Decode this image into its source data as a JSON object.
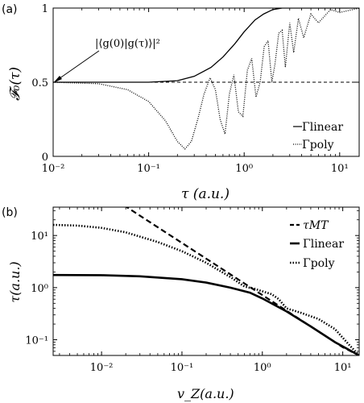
{
  "chart_data": [
    {
      "panel_label": "(a)",
      "type": "line",
      "xlabel": "τ (a.u.)",
      "ylabel": "𝓕₀(τ)",
      "xscale": "log",
      "xlim": [
        0.01,
        16
      ],
      "ylim": [
        0,
        1
      ],
      "x_ticks": [
        0.01,
        0.1,
        1,
        10
      ],
      "x_tick_labels": [
        "10⁻²",
        "10⁻¹",
        "10⁰",
        "10¹"
      ],
      "y_ticks": [
        0,
        0.5,
        1
      ],
      "y_tick_labels": [
        "0",
        "0.5",
        "1"
      ],
      "annotation": "|⟨g(0)|g(τ)⟩|²",
      "grid": false,
      "legend_position": "right",
      "series": [
        {
          "name": "Γ_linear",
          "legend_text": "Γlinear",
          "style": "solid",
          "x": [
            0.01,
            0.1,
            0.2,
            0.3,
            0.45,
            0.6,
            0.8,
            1.0,
            1.3,
            1.6,
            2.0,
            2.5,
            3.0,
            16
          ],
          "y": [
            0.5,
            0.5,
            0.51,
            0.54,
            0.6,
            0.67,
            0.76,
            0.84,
            0.92,
            0.96,
            0.99,
            1.0,
            1.0,
            1.0
          ]
        },
        {
          "name": "Γ_poly",
          "legend_text": "Γpoly",
          "style": "dotted",
          "x": [
            0.01,
            0.03,
            0.06,
            0.1,
            0.15,
            0.2,
            0.24,
            0.28,
            0.33,
            0.38,
            0.44,
            0.5,
            0.56,
            0.63,
            0.7,
            0.78,
            0.87,
            0.97,
            1.08,
            1.2,
            1.33,
            1.47,
            1.62,
            1.78,
            1.95,
            2.1,
            2.3,
            2.5,
            2.7,
            3.0,
            3.3,
            3.7,
            4.2,
            5.0,
            6.0,
            8.0,
            10.0,
            16.0
          ],
          "y": [
            0.5,
            0.49,
            0.45,
            0.37,
            0.24,
            0.1,
            0.05,
            0.1,
            0.26,
            0.42,
            0.53,
            0.45,
            0.25,
            0.15,
            0.42,
            0.55,
            0.3,
            0.27,
            0.58,
            0.66,
            0.4,
            0.5,
            0.74,
            0.78,
            0.5,
            0.62,
            0.83,
            0.85,
            0.6,
            0.9,
            0.7,
            0.93,
            0.8,
            0.96,
            0.9,
            0.99,
            0.97,
            1.0
          ]
        },
        {
          "name": "reference 0.5",
          "style": "dashed",
          "x": [
            0.01,
            16
          ],
          "y": [
            0.5,
            0.5
          ]
        }
      ]
    },
    {
      "panel_label": "(b)",
      "type": "line",
      "xlabel": "v_Z(a.u.)",
      "ylabel": "τ(a.u.)",
      "xscale": "log",
      "yscale": "log",
      "xlim": [
        0.0025,
        16
      ],
      "ylim": [
        0.05,
        35
      ],
      "x_ticks": [
        0.01,
        0.1,
        1,
        10
      ],
      "x_tick_labels": [
        "10⁻²",
        "10⁻¹",
        "10⁰",
        "10¹"
      ],
      "y_ticks": [
        0.1,
        1,
        10
      ],
      "y_tick_labels": [
        "10⁻¹",
        "10⁰",
        "10¹"
      ],
      "grid": false,
      "legend_position": "top-right",
      "series": [
        {
          "name": "τ_MT",
          "legend_text": "τMT",
          "style": "dashed",
          "x": [
            0.019,
            0.05,
            0.1,
            0.2,
            0.5,
            1.0,
            2.0,
            5.0,
            10.0,
            16.0
          ],
          "y": [
            38,
            14.4,
            7.2,
            3.6,
            1.44,
            0.72,
            0.36,
            0.144,
            0.072,
            0.05
          ]
        },
        {
          "name": "Γ_linear",
          "legend_text": "Γlinear",
          "style": "solid",
          "x": [
            0.0025,
            0.01,
            0.03,
            0.1,
            0.2,
            0.4,
            0.7,
            1.0,
            2.0,
            4.0,
            8.0,
            16.0
          ],
          "y": [
            1.75,
            1.73,
            1.65,
            1.45,
            1.25,
            1.0,
            0.8,
            0.62,
            0.35,
            0.18,
            0.09,
            0.05
          ]
        },
        {
          "name": "Γ_poly",
          "legend_text": "Γpoly",
          "style": "dotted",
          "x": [
            0.0025,
            0.005,
            0.01,
            0.02,
            0.05,
            0.1,
            0.2,
            0.4,
            0.6,
            0.8,
            1.0,
            1.3,
            1.6,
            2.0,
            3.0,
            5.0,
            8.0,
            12.0,
            16.0
          ],
          "y": [
            16,
            15.5,
            14,
            11.5,
            7.5,
            5.0,
            3.0,
            1.6,
            1.05,
            0.95,
            0.85,
            0.75,
            0.6,
            0.4,
            0.33,
            0.25,
            0.16,
            0.08,
            0.05
          ]
        }
      ]
    }
  ]
}
